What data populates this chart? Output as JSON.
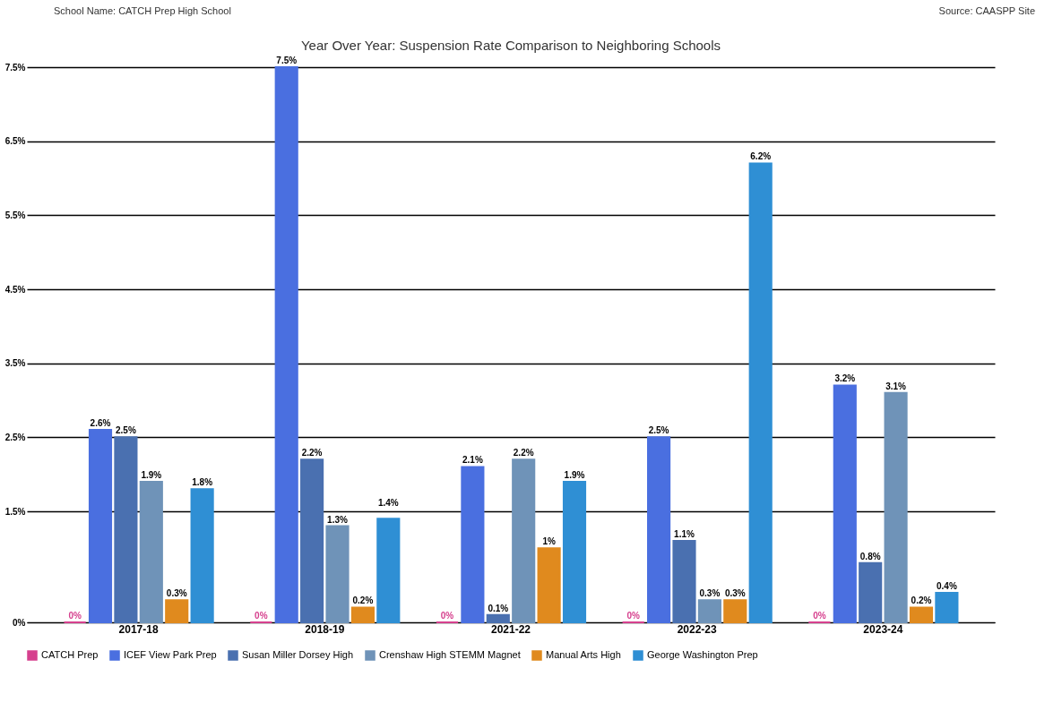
{
  "chart_data": {
    "type": "bar",
    "title": "Year Over Year: Suspension Rate Comparison to Neighboring Schools",
    "annotations": [
      "School Name: CATCH Prep High School",
      "Source: CAASPP Site"
    ],
    "categories": [
      "2017-18",
      "2018-19",
      "2021-22",
      "2022-23",
      "2023-24"
    ],
    "series": [
      {
        "name": "CATCH Prep",
        "color": "#d6408e",
        "values": [
          0,
          0,
          0,
          0,
          0
        ],
        "value_labels": [
          "0%",
          "0%",
          "0%",
          "0%",
          "0%"
        ]
      },
      {
        "name": "ICEF View Park Prep",
        "color": "#4a6fe0",
        "values": [
          2.6,
          7.5,
          2.1,
          2.5,
          3.2
        ],
        "value_labels": [
          "2.6%",
          "7.5%",
          "2.1%",
          "2.5%",
          "3.2%"
        ]
      },
      {
        "name": "Susan Miller Dorsey High",
        "color": "#4a70b0",
        "values": [
          2.5,
          2.2,
          0.1,
          1.1,
          0.8
        ],
        "value_labels": [
          "2.5%",
          "2.2%",
          "0.1%",
          "1.1%",
          "0.8%"
        ]
      },
      {
        "name": "Crenshaw High STEMM Magnet",
        "color": "#6f93b8",
        "values": [
          1.9,
          1.3,
          2.2,
          0.3,
          3.1
        ],
        "value_labels": [
          "1.9%",
          "1.3%",
          "2.2%",
          "0.3%",
          "3.1%"
        ]
      },
      {
        "name": "Manual Arts High",
        "color": "#e08a1e",
        "values": [
          0.3,
          0.2,
          1,
          0.3,
          0.2
        ],
        "value_labels": [
          "0.3%",
          "0.2%",
          "1%",
          "0.3%",
          "0.2%"
        ]
      },
      {
        "name": "George Washington Prep",
        "color": "#2f8fd4",
        "values": [
          1.8,
          1.4,
          1.9,
          6.2,
          0.4
        ],
        "value_labels": [
          "1.8%",
          "1.4%",
          "1.9%",
          "6.2%",
          "0.4%"
        ]
      }
    ],
    "ylim": [
      0,
      7.5
    ],
    "yticks": [
      {
        "value": 0,
        "label": "0%"
      },
      {
        "value": 1.5,
        "label": "1.5%"
      },
      {
        "value": 2.5,
        "label": "2.5%"
      },
      {
        "value": 3.5,
        "label": "3.5%"
      },
      {
        "value": 4.5,
        "label": "4.5%"
      },
      {
        "value": 5.5,
        "label": "5.5%"
      },
      {
        "value": 6.5,
        "label": "6.5%"
      },
      {
        "value": 7.5,
        "label": "7.5%"
      }
    ],
    "grid": "y",
    "legend": "bottom"
  }
}
